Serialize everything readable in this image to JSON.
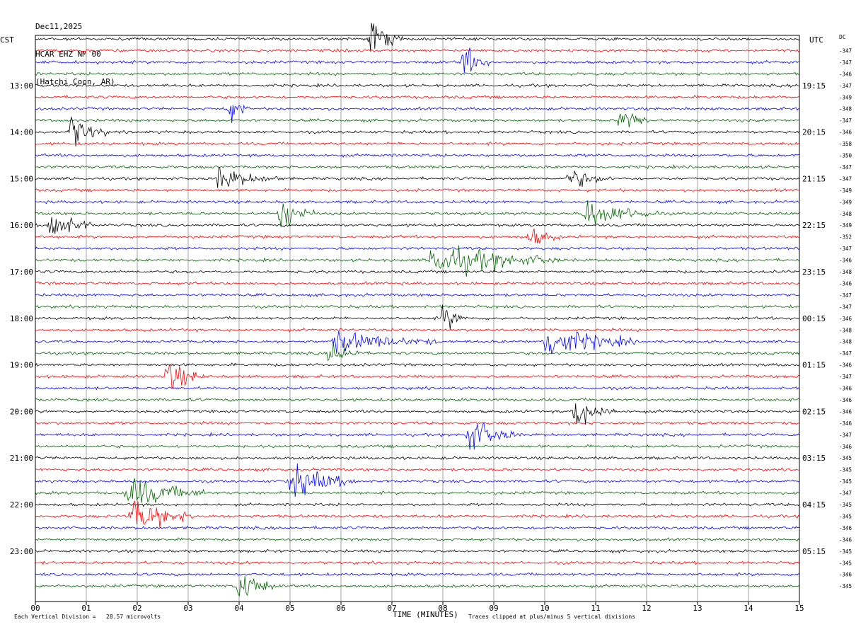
{
  "header": {
    "date": "Dec11,2025",
    "station": "HCAR EHZ NM 00",
    "location": "(Hatchi Coon, AR)"
  },
  "left_zone": "CST",
  "right_zone": "UTC",
  "dc_label": "DC",
  "footer": {
    "scale": "Each Vertical Division =   28.57 microvolts",
    "clip": "Traces clipped at plus/minus 5 vertical divisions",
    "xlabel": "TIME (MINUTES)"
  },
  "colors": {
    "trace_cycle": [
      "#000000",
      "#ff0000",
      "#0000ff",
      "#006400"
    ],
    "grid": "#a0a0a0"
  },
  "chart_data": {
    "type": "line",
    "title": "HCAR EHZ NM 00 (Hatchi Coon, AR) Dec11,2025",
    "xlabel": "TIME (MINUTES)",
    "x_ticks": [
      "00",
      "01",
      "02",
      "03",
      "04",
      "05",
      "06",
      "07",
      "08",
      "09",
      "10",
      "11",
      "12",
      "13",
      "14",
      "15"
    ],
    "xlim": [
      0,
      15
    ],
    "left_hour_labels": [
      "13:00",
      "14:00",
      "15:00",
      "16:00",
      "17:00",
      "18:00",
      "19:00",
      "20:00",
      "21:00",
      "22:00",
      "23:00"
    ],
    "right_hour_labels": [
      "19:15",
      "20:15",
      "21:15",
      "22:15",
      "23:15",
      "00:15",
      "01:15",
      "02:15",
      "03:15",
      "04:15",
      "05:15"
    ],
    "dc_offsets": [
      "-347",
      "-347",
      "-346",
      "-347",
      "-349",
      "-348",
      "-347",
      "-346",
      "-358",
      "-350",
      "-347",
      "-347",
      "-349",
      "-349",
      "-348",
      "-349",
      "-352",
      "-347",
      "-346",
      "-348",
      "-346",
      "-347",
      "-347",
      "-346",
      "-348",
      "-348",
      "-347",
      "-346",
      "-347",
      "-346",
      "-346",
      "-346",
      "-346",
      "-347",
      "-346",
      "-345",
      "-345",
      "-345",
      "-347",
      "-345",
      "-345",
      "-346",
      "-346",
      "-345",
      "-345",
      "-346",
      "-345"
    ],
    "events": [
      {
        "row": 0,
        "minute": 6.6,
        "amp": 5,
        "dur": 0.6
      },
      {
        "row": 2,
        "minute": 8.4,
        "amp": 5,
        "dur": 0.5
      },
      {
        "row": 6,
        "minute": 3.8,
        "amp": 4,
        "dur": 0.4
      },
      {
        "row": 7,
        "minute": 11.5,
        "amp": 4,
        "dur": 0.6
      },
      {
        "row": 8,
        "minute": 0.7,
        "amp": 5,
        "dur": 0.7
      },
      {
        "row": 12,
        "minute": 3.6,
        "amp": 3,
        "dur": 1.2
      },
      {
        "row": 12,
        "minute": 10.5,
        "amp": 3,
        "dur": 0.8
      },
      {
        "row": 15,
        "minute": 4.8,
        "amp": 5,
        "dur": 0.7
      },
      {
        "row": 15,
        "minute": 10.8,
        "amp": 4,
        "dur": 1.5
      },
      {
        "row": 16,
        "minute": 0.3,
        "amp": 5,
        "dur": 0.8
      },
      {
        "row": 17,
        "minute": 9.7,
        "amp": 3,
        "dur": 0.6
      },
      {
        "row": 19,
        "minute": 7.8,
        "amp": 5,
        "dur": 2.5
      },
      {
        "row": 24,
        "minute": 8.0,
        "amp": 4,
        "dur": 0.5
      },
      {
        "row": 26,
        "minute": 5.9,
        "amp": 3,
        "dur": 2.0
      },
      {
        "row": 26,
        "minute": 10.0,
        "amp": 5,
        "dur": 1.8
      },
      {
        "row": 27,
        "minute": 5.8,
        "amp": 4,
        "dur": 0.6
      },
      {
        "row": 29,
        "minute": 2.6,
        "amp": 5,
        "dur": 0.7
      },
      {
        "row": 32,
        "minute": 10.6,
        "amp": 5,
        "dur": 0.8
      },
      {
        "row": 34,
        "minute": 8.5,
        "amp": 5,
        "dur": 1.0
      },
      {
        "row": 38,
        "minute": 5.0,
        "amp": 5,
        "dur": 1.3
      },
      {
        "row": 39,
        "minute": 1.8,
        "amp": 5,
        "dur": 1.5
      },
      {
        "row": 41,
        "minute": 1.9,
        "amp": 5,
        "dur": 1.3
      },
      {
        "row": 47,
        "minute": 4.0,
        "amp": 5,
        "dur": 0.7
      }
    ]
  }
}
